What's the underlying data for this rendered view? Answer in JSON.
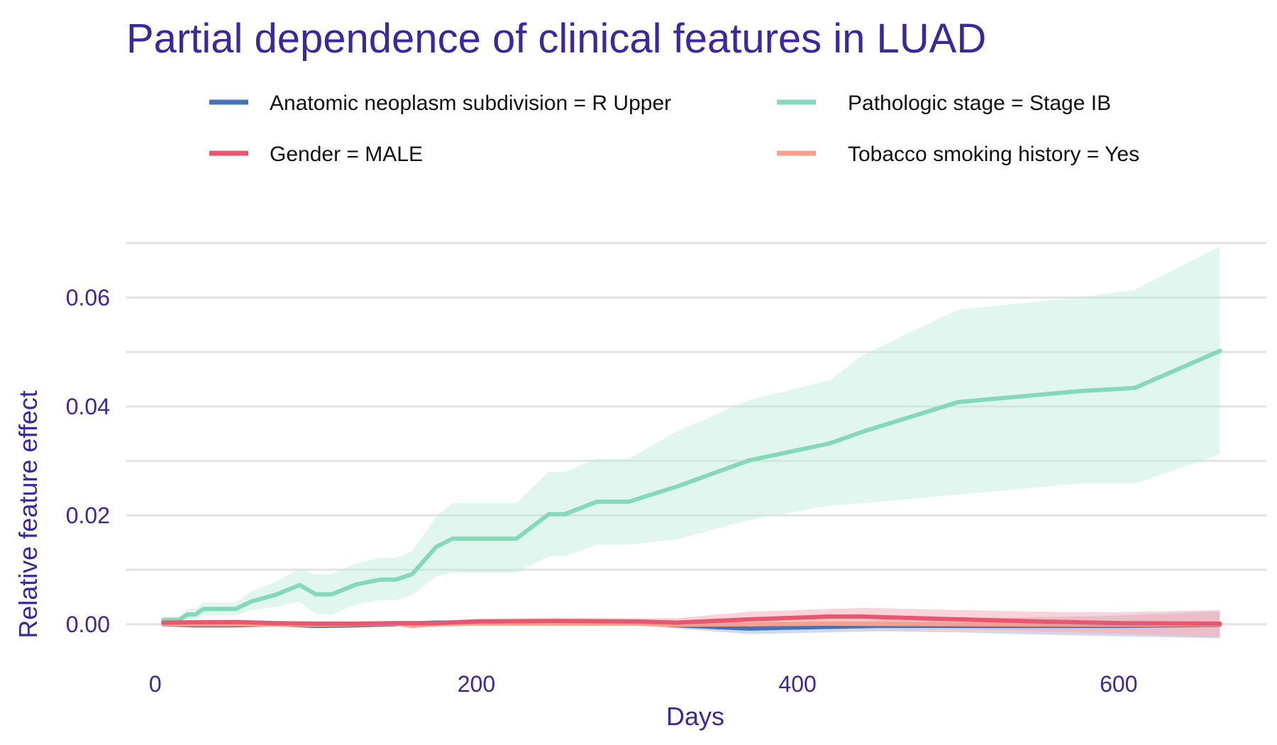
{
  "colors": {
    "text": "#3a28a0",
    "grid": "#e2e2e2",
    "background": "#ffffff"
  },
  "chart_data": {
    "type": "line",
    "title": "Partial dependence of clinical features in LUAD",
    "xlabel": "Days",
    "ylabel": "Relative feature effect",
    "xlim": [
      -18,
      692
    ],
    "ylim": [
      -0.0085,
      0.071
    ],
    "xticks": [
      0,
      200,
      400,
      600
    ],
    "xtick_labels": [
      "0",
      "200",
      "400",
      "600"
    ],
    "yticks": [
      0.0,
      0.02,
      0.04,
      0.06
    ],
    "ytick_labels": [
      "0.00",
      "0.02",
      "0.04",
      "0.06"
    ],
    "grid_major_y": [
      0.0,
      0.02,
      0.04,
      0.06
    ],
    "grid_minor_y": [
      0.01,
      0.03,
      0.05,
      0.07
    ],
    "grid": true,
    "legend_position": "top",
    "series": [
      {
        "name": "Anatomic neoplasm subdivision = R Upper",
        "color": "#4472b8",
        "band_color": "#9db5e6",
        "x": [
          5,
          25,
          50,
          75,
          100,
          125,
          150,
          175,
          200,
          250,
          300,
          325,
          370,
          400,
          450,
          500,
          550,
          600,
          663
        ],
        "y": [
          0.0,
          -0.0002,
          -0.0002,
          0.0,
          -0.0003,
          -0.0002,
          0.0,
          0.0003,
          0.0003,
          0.0003,
          0.0003,
          -0.0002,
          -0.0008,
          -0.0006,
          -0.0003,
          -0.0003,
          -0.0003,
          -0.0003,
          -0.0001
        ],
        "lower": [
          -0.0004,
          -0.0006,
          -0.0006,
          -0.0004,
          -0.0007,
          -0.0006,
          -0.0004,
          -0.0001,
          -0.0001,
          -0.0001,
          -0.0001,
          -0.0008,
          -0.0018,
          -0.0016,
          -0.0013,
          -0.0015,
          -0.0019,
          -0.0022,
          -0.0026
        ],
        "upper": [
          0.0004,
          0.0002,
          0.0002,
          0.0004,
          0.0001,
          0.0002,
          0.0004,
          0.0007,
          0.0007,
          0.0007,
          0.0007,
          0.0004,
          0.0002,
          0.0004,
          0.0007,
          0.0009,
          0.0013,
          0.0016,
          0.0024
        ]
      },
      {
        "name": "Pathologic stage = Stage IB",
        "color": "#85d9bb",
        "band_color": "#bdeadb",
        "x": [
          5,
          15,
          20,
          25,
          30,
          40,
          50,
          60,
          75,
          90,
          100,
          110,
          125,
          140,
          150,
          160,
          175,
          185,
          200,
          225,
          245,
          255,
          275,
          295,
          325,
          370,
          420,
          440,
          500,
          575,
          610,
          663
        ],
        "y": [
          0.0008,
          0.0008,
          0.0018,
          0.0018,
          0.0028,
          0.0028,
          0.0028,
          0.0042,
          0.0054,
          0.0072,
          0.0055,
          0.0055,
          0.0073,
          0.0082,
          0.0082,
          0.0092,
          0.0142,
          0.0157,
          0.0157,
          0.0157,
          0.0202,
          0.0202,
          0.0225,
          0.0225,
          0.0253,
          0.0301,
          0.0332,
          0.0353,
          0.0408,
          0.0428,
          0.0434,
          0.0502
        ],
        "lower": [
          0.0002,
          0.0002,
          0.0008,
          0.0008,
          0.0016,
          0.0016,
          0.0016,
          0.0026,
          0.0032,
          0.0042,
          0.0018,
          0.0018,
          0.0036,
          0.0044,
          0.0044,
          0.0054,
          0.0088,
          0.0095,
          0.0095,
          0.0095,
          0.0125,
          0.0125,
          0.0146,
          0.0146,
          0.0156,
          0.0192,
          0.0218,
          0.0222,
          0.0238,
          0.0258,
          0.0258,
          0.0312
        ],
        "upper": [
          0.0014,
          0.0014,
          0.0028,
          0.0028,
          0.004,
          0.004,
          0.004,
          0.006,
          0.0078,
          0.0102,
          0.0092,
          0.0092,
          0.0112,
          0.0122,
          0.0122,
          0.0134,
          0.0198,
          0.0223,
          0.0223,
          0.0223,
          0.028,
          0.028,
          0.0304,
          0.0304,
          0.0354,
          0.0412,
          0.0448,
          0.0493,
          0.0578,
          0.06,
          0.0614,
          0.0694
        ]
      },
      {
        "name": "Gender = MALE",
        "color": "#e8566f",
        "band_color": "#f2a9b6",
        "x": [
          5,
          50,
          75,
          100,
          125,
          150,
          175,
          200,
          250,
          300,
          325,
          370,
          420,
          440,
          500,
          550,
          600,
          663
        ],
        "y": [
          0.0003,
          0.0004,
          0.0002,
          0.0001,
          0.0001,
          0.0002,
          0.0002,
          0.0005,
          0.0006,
          0.0005,
          0.0003,
          0.0009,
          0.0014,
          0.0014,
          0.0009,
          0.0005,
          0.0002,
          0.0001
        ],
        "lower": [
          -0.0001,
          0.0,
          -0.0002,
          -0.0003,
          -0.0003,
          -0.0002,
          -0.0002,
          0.0,
          0.0,
          -0.0001,
          -0.0005,
          -0.0003,
          0.0,
          -0.0002,
          -0.0008,
          -0.0013,
          -0.0018,
          -0.0024
        ],
        "upper": [
          0.0007,
          0.0008,
          0.0006,
          0.0005,
          0.0005,
          0.0006,
          0.0006,
          0.001,
          0.0012,
          0.0011,
          0.0011,
          0.0023,
          0.0028,
          0.003,
          0.0026,
          0.0023,
          0.0022,
          0.0026
        ]
      },
      {
        "name": "Tobacco smoking history = Yes",
        "color": "#f7a08d",
        "band_color": "#f9c7bb",
        "x": [
          5,
          50,
          100,
          150,
          160,
          175,
          200,
          250,
          300,
          325,
          370,
          420,
          500,
          600,
          663
        ],
        "y": [
          0.0,
          0.0,
          -0.0001,
          0.0001,
          -0.0003,
          0.0,
          0.0001,
          0.0001,
          0.0001,
          -0.0001,
          0.0,
          0.0001,
          0.0,
          -0.0001,
          0.0
        ],
        "lower": [
          -0.0003,
          -0.0003,
          -0.0004,
          -0.0002,
          -0.0006,
          -0.0003,
          -0.0002,
          -0.0003,
          -0.0003,
          -0.0007,
          -0.0008,
          -0.0009,
          -0.0012,
          -0.0016,
          -0.002
        ],
        "upper": [
          0.0003,
          0.0003,
          0.0002,
          0.0004,
          0.0,
          0.0003,
          0.0004,
          0.0005,
          0.0005,
          0.0005,
          0.0008,
          0.0011,
          0.0012,
          0.0014,
          0.002
        ]
      }
    ]
  }
}
